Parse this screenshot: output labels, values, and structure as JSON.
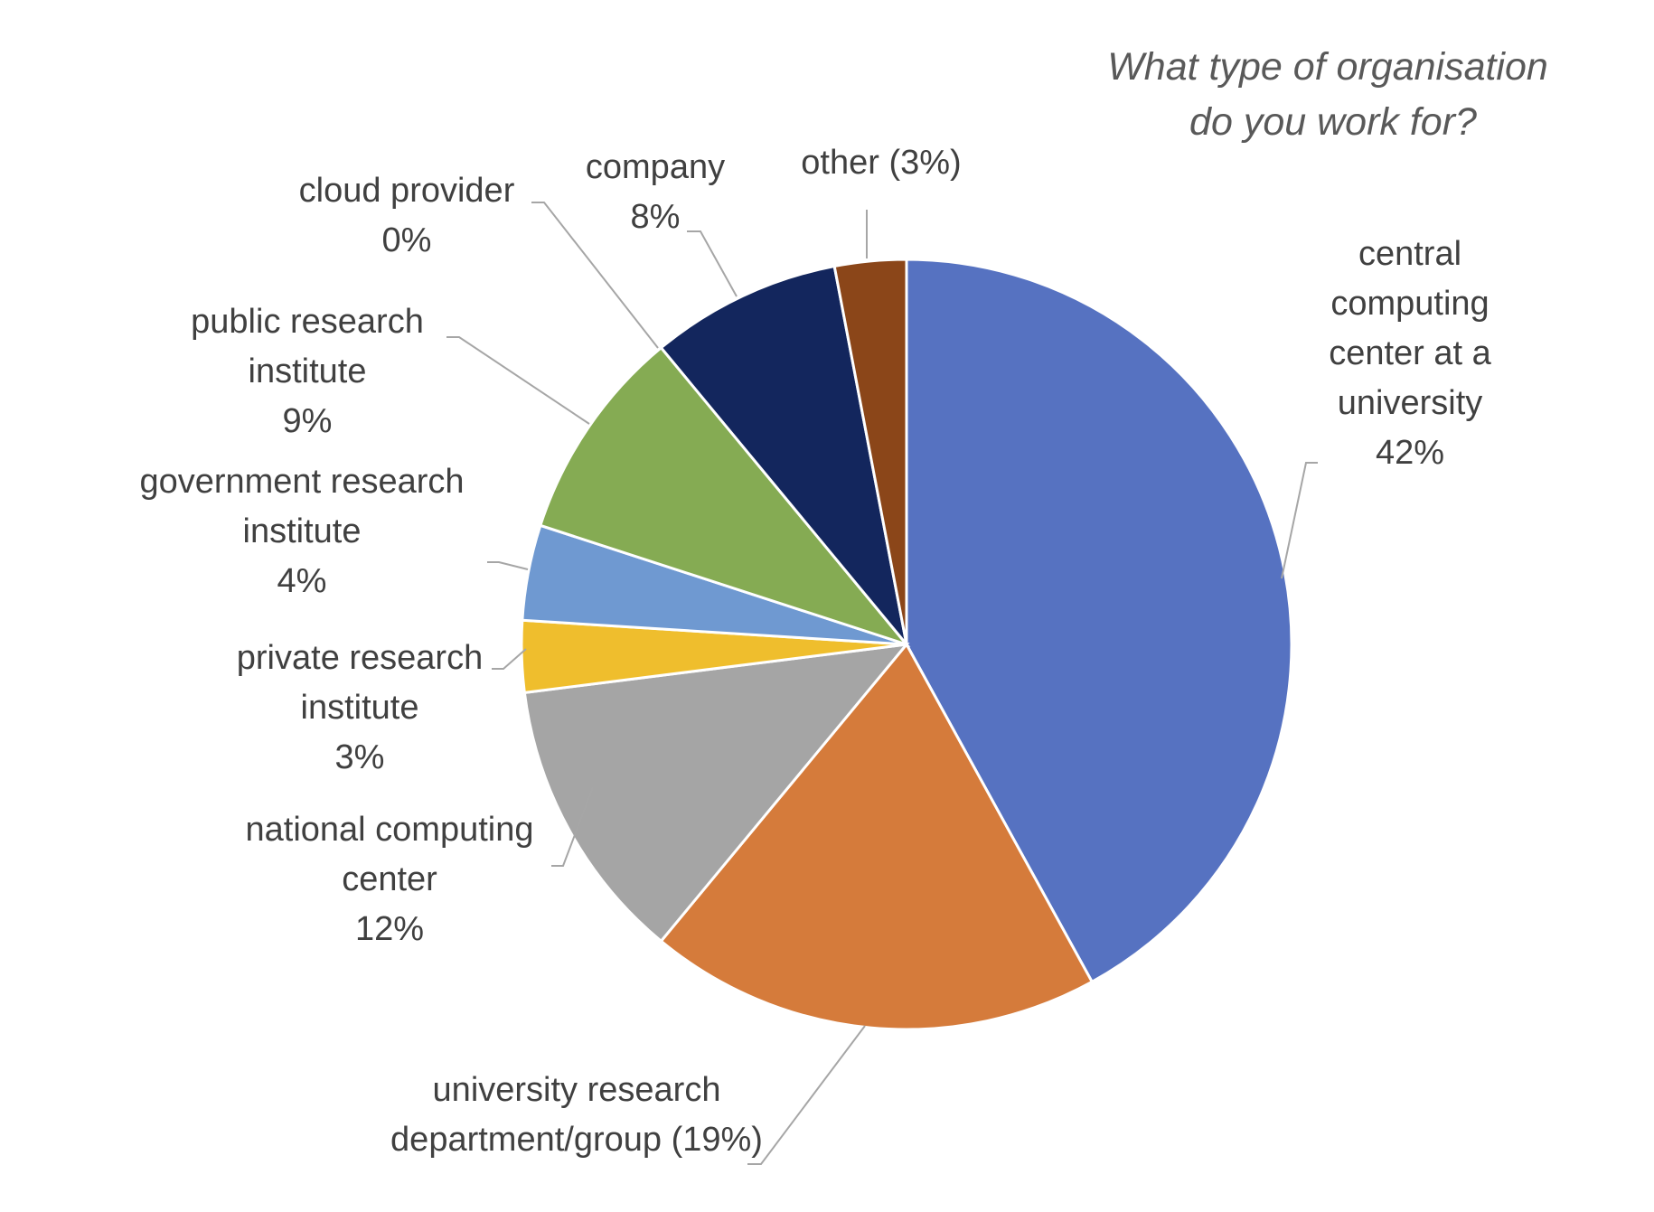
{
  "chart_data": {
    "type": "pie",
    "title": "What type of organisation do you work for?",
    "title_lines": [
      "What type of organisation",
      "do you work for?"
    ],
    "start_angle_deg": 0,
    "direction": "clockwise",
    "slices": [
      {
        "name": "central computing center at a university",
        "value": 42,
        "color": "#5672c1",
        "label_lines": [
          "central",
          "computing",
          "center at a",
          "university",
          "42%"
        ]
      },
      {
        "name": "university research department/group",
        "value": 19,
        "color": "#d57b3b",
        "label_lines": [
          "university research",
          "department/group (19%)"
        ]
      },
      {
        "name": "national computing center",
        "value": 12,
        "color": "#a5a5a5",
        "label_lines": [
          "national computing",
          "center",
          "12%"
        ]
      },
      {
        "name": "private research institute",
        "value": 3,
        "color": "#efbe2d",
        "label_lines": [
          "private research",
          "institute",
          "3%"
        ]
      },
      {
        "name": "government research institute",
        "value": 4,
        "color": "#6f99d1",
        "label_lines": [
          "government research",
          "institute",
          "4%"
        ]
      },
      {
        "name": "public research institute",
        "value": 9,
        "color": "#85ab53",
        "label_lines": [
          "public research",
          "institute",
          "9%"
        ]
      },
      {
        "name": "cloud provider",
        "value": 0,
        "color": "#ffffff",
        "label_lines": [
          "cloud provider",
          "0%"
        ]
      },
      {
        "name": "company",
        "value": 8,
        "color": "#13265d",
        "label_lines": [
          "company",
          "8%"
        ]
      },
      {
        "name": "other",
        "value": 3,
        "color": "#8b4619",
        "label_lines": [
          "other (3%)"
        ]
      }
    ]
  }
}
